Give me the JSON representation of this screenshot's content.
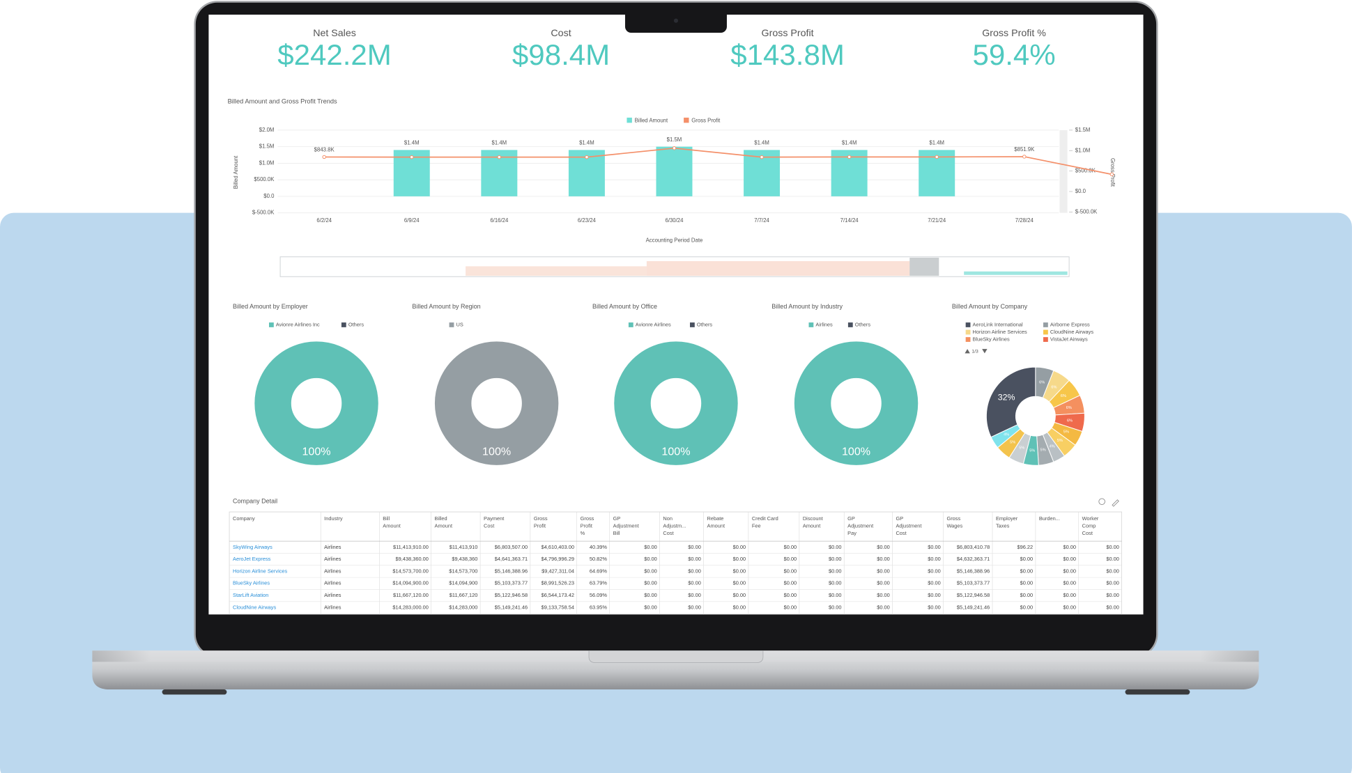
{
  "kpis": [
    {
      "label": "Net Sales",
      "value": "$242.2M"
    },
    {
      "label": "Cost",
      "value": "$98.4M"
    },
    {
      "label": "Gross Profit",
      "value": "$143.8M"
    },
    {
      "label": "Gross Profit %",
      "value": "59.4%"
    }
  ],
  "chart_data": [
    {
      "type": "combo",
      "title": "Billed Amount and Gross Profit Trends",
      "x_label": "Accounting Period Date",
      "y_label": "Billed Amount",
      "y2_label": "Gross Profit",
      "categories": [
        "6/2/24",
        "6/9/24",
        "6/16/24",
        "6/23/24",
        "6/30/24",
        "7/7/24",
        "7/14/24",
        "7/21/24",
        "7/28/24",
        null
      ],
      "series": [
        {
          "name": "Billed Amount",
          "type": "bar",
          "color": "#6fdfd6",
          "values": [
            null,
            1400000,
            1400000,
            1400000,
            1500000,
            1400000,
            1400000,
            1400000,
            null,
            null
          ],
          "value_labels": [
            null,
            "$1.4M",
            "$1.4M",
            "$1.4M",
            "$1.5M",
            "$1.4M",
            "$1.4M",
            "$1.4M",
            null,
            null
          ]
        },
        {
          "name": "Gross Profit",
          "type": "line",
          "axis": "y2",
          "color": "#f4906a",
          "values": [
            843800,
            840000,
            840000,
            840000,
            1060000,
            840000,
            845000,
            845000,
            851900,
            420000
          ],
          "value_labels": [
            "$843.8K",
            null,
            null,
            null,
            null,
            null,
            null,
            null,
            "$851.9K",
            null
          ]
        }
      ],
      "ylim": [
        -500000,
        2000000
      ],
      "yticks": [
        {
          "value": -500000,
          "label": "$-500.0K"
        },
        {
          "value": 0,
          "label": "$0.0"
        },
        {
          "value": 500000,
          "label": "$500.0K"
        },
        {
          "value": 1000000,
          "label": "$1.0M"
        },
        {
          "value": 1500000,
          "label": "$1.5M"
        },
        {
          "value": 2000000,
          "label": "$2.0M"
        }
      ],
      "y2lim": [
        -500000,
        1500000
      ],
      "y2ticks": [
        {
          "value": -500000,
          "label": "$-500.0K"
        },
        {
          "value": 0,
          "label": "$0.0"
        },
        {
          "value": 500000,
          "label": "$500.0K"
        },
        {
          "value": 1000000,
          "label": "$1.0M"
        },
        {
          "value": 1500000,
          "label": "$1.5M"
        }
      ],
      "grid": true,
      "legend": "top"
    },
    {
      "type": "donut",
      "title": "Billed Amount by Employer",
      "categories": [
        "Avionre Airlines Inc",
        "Others"
      ],
      "colors": [
        "#5fc1b6",
        "#4a5160"
      ],
      "values": [
        100,
        0
      ],
      "value_labels": [
        "100%",
        null
      ],
      "legend": "top"
    },
    {
      "type": "donut",
      "title": "Billed Amount by Region",
      "categories": [
        "US"
      ],
      "colors": [
        "#959ea3"
      ],
      "values": [
        100
      ],
      "value_labels": [
        "100%"
      ],
      "legend": "top"
    },
    {
      "type": "donut",
      "title": "Billed Amount by Office",
      "categories": [
        "Avionre Airlines",
        "Others"
      ],
      "colors": [
        "#5fc1b6",
        "#4a5160"
      ],
      "values": [
        100,
        0
      ],
      "value_labels": [
        "100%",
        null
      ],
      "legend": "top"
    },
    {
      "type": "donut",
      "title": "Billed Amount by Industry",
      "categories": [
        "Airlines",
        "Others"
      ],
      "colors": [
        "#5fc1b6",
        "#4a5160"
      ],
      "values": [
        100,
        0
      ],
      "value_labels": [
        "100%",
        null
      ],
      "legend": "top"
    },
    {
      "type": "donut",
      "title": "Billed Amount by Company",
      "categories": [
        "AeroLink International",
        "Airborne Express",
        "Horizon Airline Services",
        "CloudNine Airways",
        "BlueSky Airlines",
        "VistaJet Airways",
        null,
        null,
        null,
        null,
        null,
        null,
        null,
        null
      ],
      "colors": [
        "#4a5160",
        "#959ea3",
        "#f6d98a",
        "#f7c64a",
        "#f4905f",
        "#ef6a4c",
        "#f4b942",
        "#f8cf63",
        "#b9c0c4",
        "#a4acb0",
        "#5fc1b6",
        "#c9cfd2",
        "#f3c34d",
        "#7fe3ec"
      ],
      "values": [
        32,
        6,
        6,
        6,
        6,
        6,
        5,
        5,
        4,
        5,
        5,
        5,
        5,
        4
      ],
      "value_labels": [
        "32%",
        "6%",
        "6%",
        "6%",
        "6%",
        "6%",
        "5%",
        "5%",
        "4%",
        "5%",
        "5%",
        "5%",
        "5%",
        "4%"
      ],
      "legend": "top",
      "legend_page": "1/3"
    }
  ],
  "table": {
    "title": "Company Detail",
    "columns": [
      [
        "Company"
      ],
      [
        "Industry"
      ],
      [
        "Bill",
        "Amount"
      ],
      [
        "Billed",
        "Amount"
      ],
      [
        "Payment",
        "Cost"
      ],
      [
        "Gross",
        "Profit"
      ],
      [
        "Gross",
        "Profit",
        "%"
      ],
      [
        "GP",
        "Adjustment",
        "Bill"
      ],
      [
        "Non",
        "Adjustm...",
        "Cost"
      ],
      [
        "Rebate",
        "Amount"
      ],
      [
        "Credit Card",
        "Fee"
      ],
      [
        "Discount",
        "Amount"
      ],
      [
        "GP",
        "Adjustment",
        "Pay"
      ],
      [
        "GP",
        "Adjustment",
        "Cost"
      ],
      [
        "Gross",
        "Wages"
      ],
      [
        "Employer",
        "Taxes"
      ],
      [
        "Burden..."
      ],
      [
        "Worker",
        "Comp",
        "Cost"
      ]
    ],
    "rows": [
      [
        "SkyWing Airways",
        "Airlines",
        "$11,413,910.00",
        "$11,413,910",
        "$6,803,507.00",
        "$4,610,403.00",
        "40.39%",
        "$0.00",
        "$0.00",
        "$0.00",
        "$0.00",
        "$0.00",
        "$0.00",
        "$0.00",
        "$6,803,410.78",
        "$96.22",
        "$0.00",
        "$0.00"
      ],
      [
        "AeroJet Express",
        "Airlines",
        "$9,438,360.00",
        "$9,438,360",
        "$4,641,363.71",
        "$4,796,996.29",
        "50.82%",
        "$0.00",
        "$0.00",
        "$0.00",
        "$0.00",
        "$0.00",
        "$0.00",
        "$0.00",
        "$4,632,363.71",
        "$0.00",
        "$0.00",
        "$0.00"
      ],
      [
        "Horizon Airline Services",
        "Airlines",
        "$14,573,700.00",
        "$14,573,700",
        "$5,146,388.96",
        "$9,427,311.04",
        "64.69%",
        "$0.00",
        "$0.00",
        "$0.00",
        "$0.00",
        "$0.00",
        "$0.00",
        "$0.00",
        "$5,146,388.96",
        "$0.00",
        "$0.00",
        "$0.00"
      ],
      [
        "BlueSky Airlines",
        "Airlines",
        "$14,094,900.00",
        "$14,094,900",
        "$5,103,373.77",
        "$8,991,526.23",
        "63.79%",
        "$0.00",
        "$0.00",
        "$0.00",
        "$0.00",
        "$0.00",
        "$0.00",
        "$0.00",
        "$5,103,373.77",
        "$0.00",
        "$0.00",
        "$0.00"
      ],
      [
        "StarLift Aviation",
        "Airlines",
        "$11,667,120.00",
        "$11,667,120",
        "$5,122,946.58",
        "$6,544,173.42",
        "56.09%",
        "$0.00",
        "$0.00",
        "$0.00",
        "$0.00",
        "$0.00",
        "$0.00",
        "$0.00",
        "$5,122,946.58",
        "$0.00",
        "$0.00",
        "$0.00"
      ],
      [
        "CloudNine Airways",
        "Airlines",
        "$14,283,000.00",
        "$14,283,000",
        "$5,149,241.46",
        "$9,133,758.54",
        "63.95%",
        "$0.00",
        "$0.00",
        "$0.00",
        "$0.00",
        "$0.00",
        "$0.00",
        "$0.00",
        "$5,149,241.46",
        "$0.00",
        "$0.00",
        "$0.00"
      ]
    ]
  }
}
